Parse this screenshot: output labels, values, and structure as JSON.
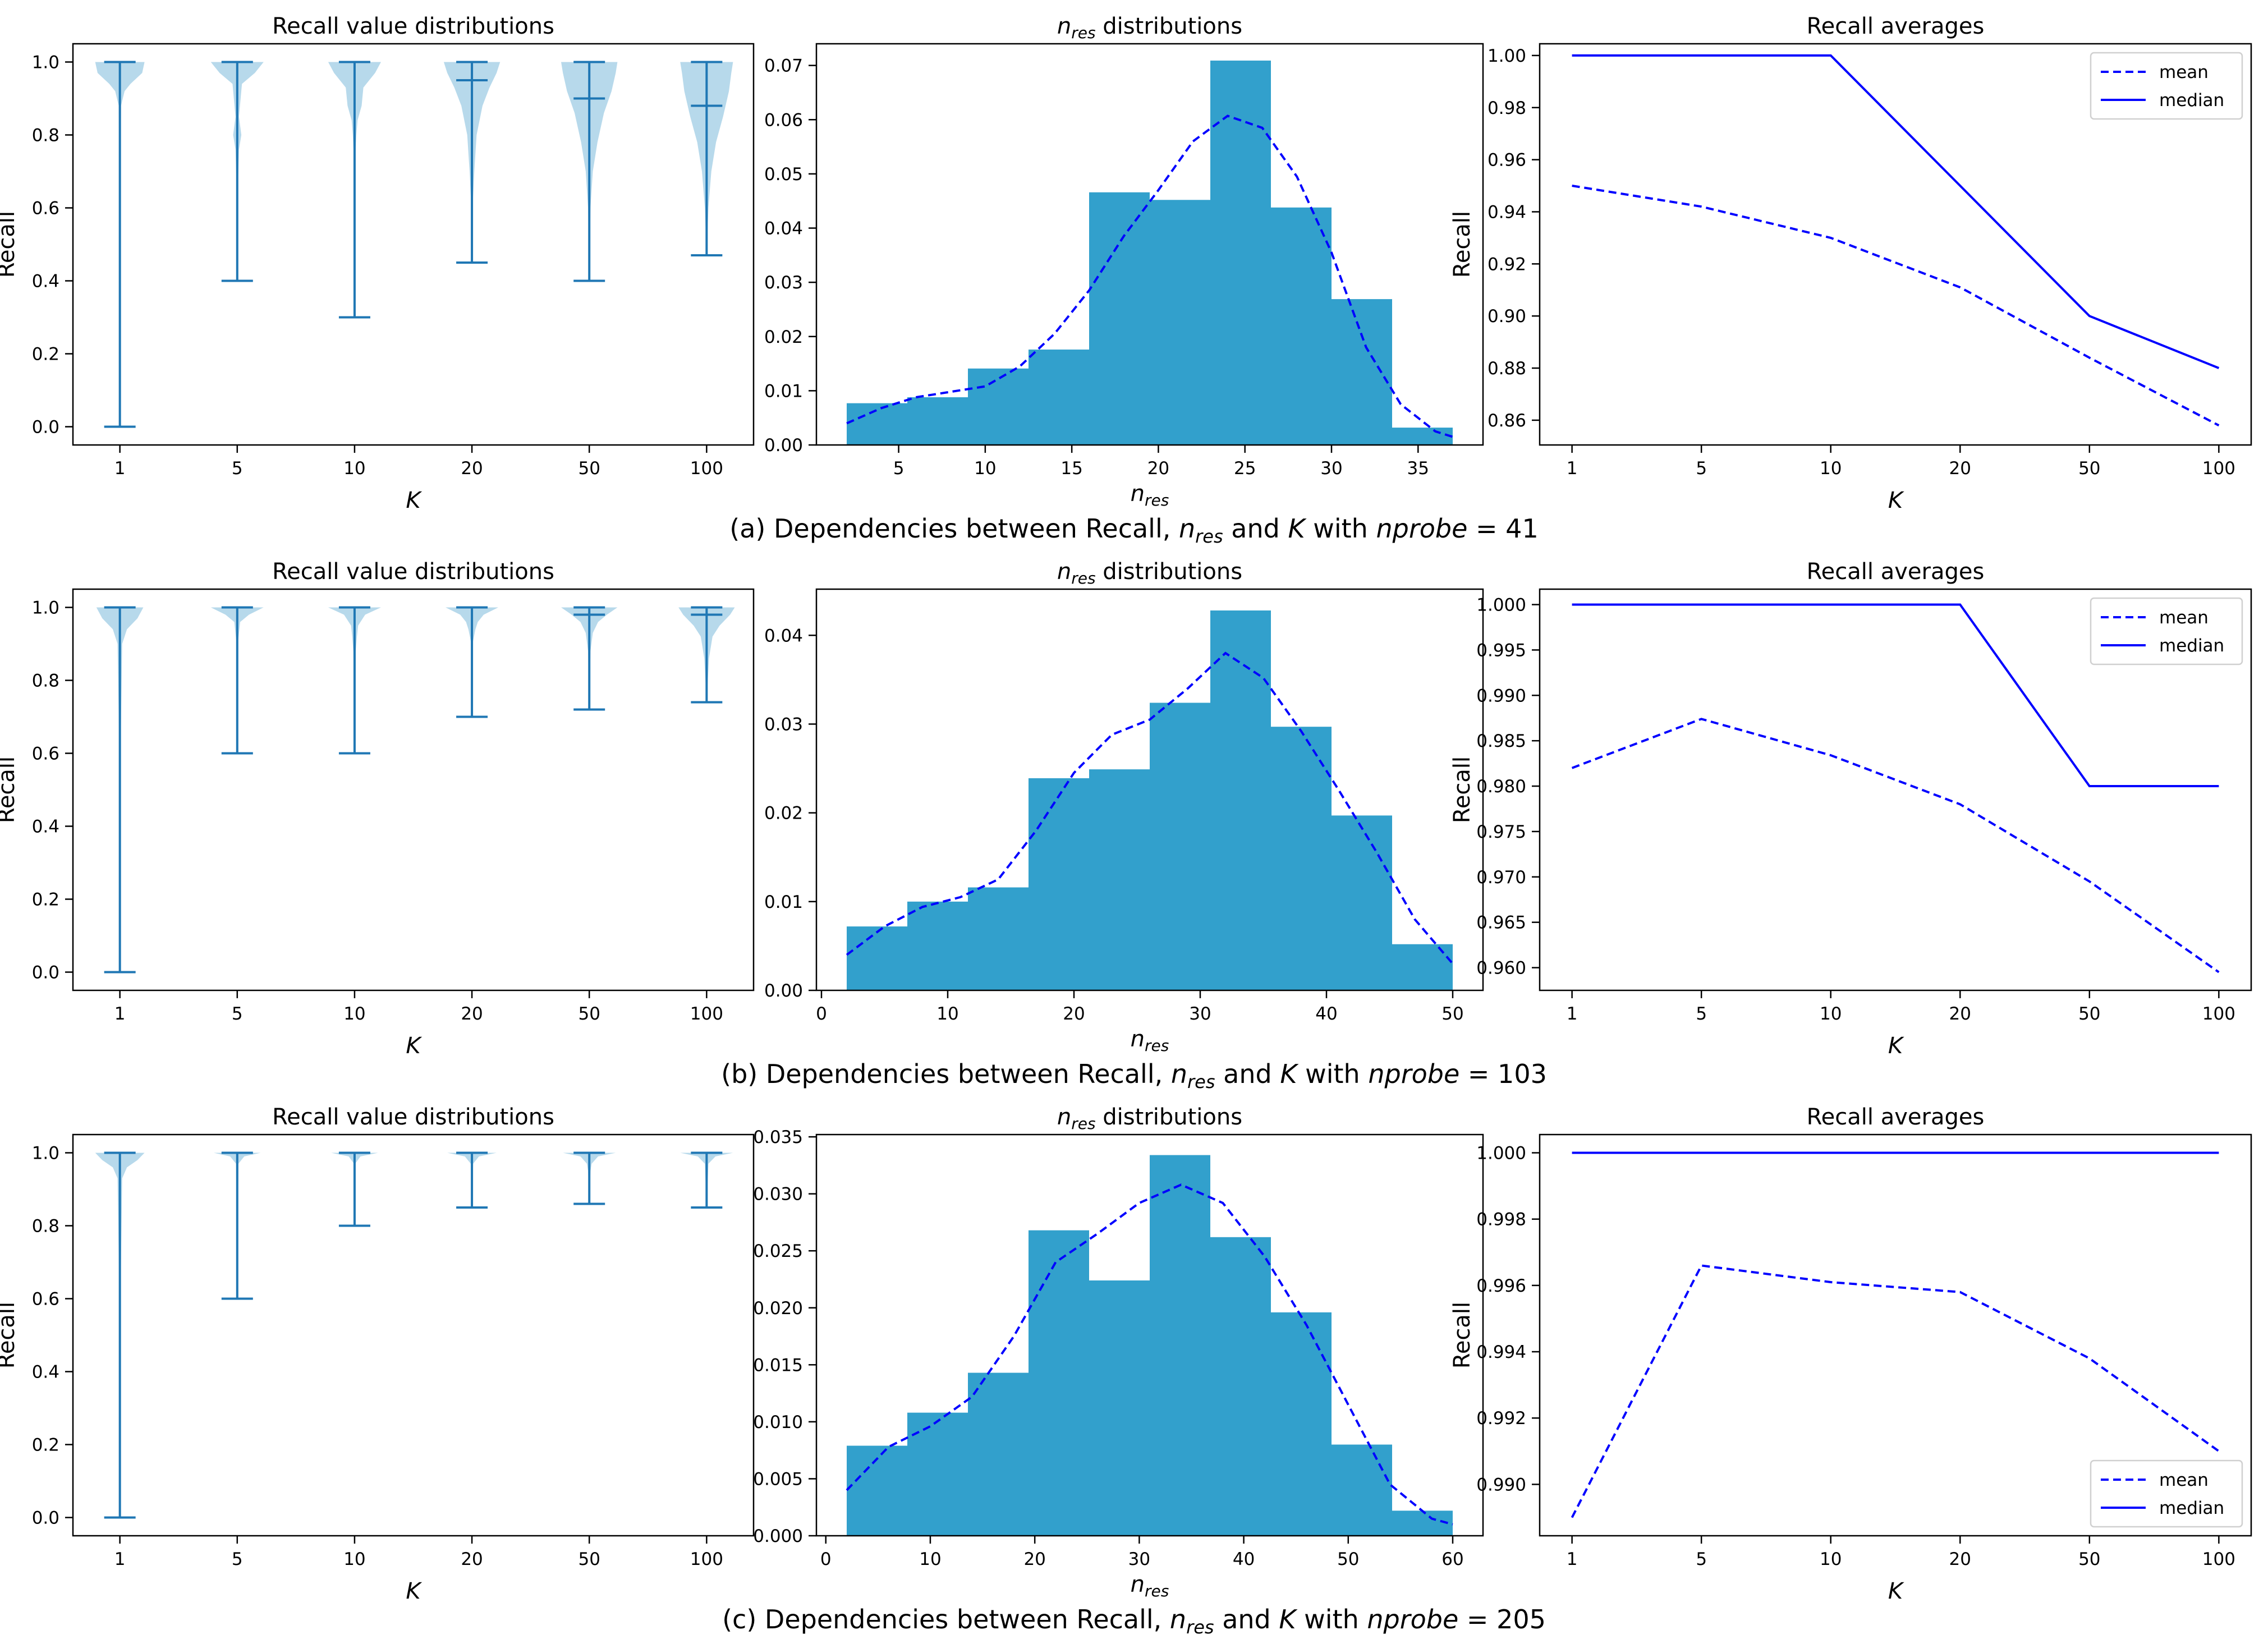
{
  "rows": [
    {
      "caption": {
        "prefix": "(a) Dependencies between Recall, ",
        "n": "n",
        "res": "res",
        "mid": " and ",
        "k": "K",
        "with": " with ",
        "nprobe": "nprobe",
        "value": " = 41"
      },
      "violin": {
        "title": "Recall value distributions",
        "xlabel": "K",
        "ylabel": "Recall",
        "categories": [
          "1",
          "5",
          "10",
          "20",
          "50",
          "100"
        ],
        "yticks": [
          "0.0",
          "0.2",
          "0.4",
          "0.6",
          "0.8",
          "1.0"
        ],
        "min": [
          0.0,
          0.4,
          0.3,
          0.45,
          0.4,
          0.47
        ],
        "max": [
          1.0,
          1.0,
          1.0,
          1.0,
          1.0,
          1.0
        ],
        "median": [
          null,
          null,
          null,
          0.95,
          0.9,
          0.88
        ],
        "shape": [
          [
            [
              1.0,
              0.42
            ],
            [
              0.97,
              0.38
            ],
            [
              0.94,
              0.18
            ],
            [
              0.92,
              0.08
            ],
            [
              0.88,
              0.02
            ],
            [
              0.5,
              0.0
            ],
            [
              0.0,
              0.0
            ]
          ],
          [
            [
              1.0,
              0.45
            ],
            [
              0.97,
              0.3
            ],
            [
              0.94,
              0.08
            ],
            [
              0.85,
              0.03
            ],
            [
              0.8,
              0.07
            ],
            [
              0.76,
              0.03
            ],
            [
              0.6,
              0.0
            ],
            [
              0.4,
              0.0
            ]
          ],
          [
            [
              1.0,
              0.45
            ],
            [
              0.97,
              0.35
            ],
            [
              0.93,
              0.15
            ],
            [
              0.88,
              0.12
            ],
            [
              0.84,
              0.05
            ],
            [
              0.8,
              0.03
            ],
            [
              0.7,
              0.0
            ],
            [
              0.3,
              0.0
            ]
          ],
          [
            [
              1.0,
              0.48
            ],
            [
              0.97,
              0.42
            ],
            [
              0.93,
              0.3
            ],
            [
              0.88,
              0.18
            ],
            [
              0.8,
              0.08
            ],
            [
              0.7,
              0.04
            ],
            [
              0.6,
              0.01
            ],
            [
              0.45,
              0.0
            ]
          ],
          [
            [
              1.0,
              0.48
            ],
            [
              0.97,
              0.45
            ],
            [
              0.92,
              0.38
            ],
            [
              0.86,
              0.25
            ],
            [
              0.78,
              0.14
            ],
            [
              0.7,
              0.06
            ],
            [
              0.6,
              0.02
            ],
            [
              0.4,
              0.0
            ]
          ],
          [
            [
              1.0,
              0.45
            ],
            [
              0.97,
              0.42
            ],
            [
              0.92,
              0.38
            ],
            [
              0.85,
              0.28
            ],
            [
              0.78,
              0.16
            ],
            [
              0.7,
              0.08
            ],
            [
              0.6,
              0.03
            ],
            [
              0.47,
              0.0
            ]
          ]
        ]
      },
      "hist": {
        "title_n": "n",
        "title_res": "res",
        "title_rest": " distributions",
        "xlabel_n": "n",
        "xlabel_res": "res",
        "xlim": [
          0.25,
          38.75
        ],
        "ylim": [
          0,
          0.074
        ],
        "xticks": [
          5,
          10,
          15,
          20,
          25,
          30,
          35
        ],
        "yticks": [
          0.0,
          0.01,
          0.02,
          0.03,
          0.04,
          0.05,
          0.06,
          0.07
        ],
        "ytick_labels": [
          "0.00",
          "0.01",
          "0.02",
          "0.03",
          "0.04",
          "0.05",
          "0.06",
          "0.07"
        ],
        "edges": [
          2,
          5.5,
          9,
          12.5,
          16,
          19.5,
          23,
          26.5,
          30,
          33.5,
          37
        ],
        "heights": [
          0.0077,
          0.0088,
          0.0141,
          0.0176,
          0.0466,
          0.0452,
          0.0709,
          0.0438,
          0.0269,
          0.0032
        ],
        "kde_x": [
          2,
          4,
          6,
          8,
          10,
          12,
          14,
          16,
          18,
          20,
          22,
          24,
          26,
          28,
          30,
          32,
          34,
          36,
          37
        ],
        "kde_y": [
          0.004,
          0.0068,
          0.0088,
          0.0098,
          0.0108,
          0.0145,
          0.0205,
          0.0285,
          0.0385,
          0.047,
          0.056,
          0.0607,
          0.0585,
          0.0495,
          0.0355,
          0.018,
          0.0075,
          0.0025,
          0.0015
        ]
      },
      "avg": {
        "title": "Recall averages",
        "xlabel": "K",
        "ylabel": "Recall",
        "categories": [
          "1",
          "5",
          "10",
          "20",
          "50",
          "100"
        ],
        "ylim": [
          0.8505,
          1.0045
        ],
        "yticks": [
          0.86,
          0.88,
          0.9,
          0.92,
          0.94,
          0.96,
          0.98,
          1.0
        ],
        "ytick_labels": [
          "0.86",
          "0.88",
          "0.90",
          "0.92",
          "0.94",
          "0.96",
          "0.98",
          "1.00"
        ],
        "mean": [
          0.95,
          0.942,
          0.93,
          0.911,
          0.884,
          0.858
        ],
        "median": [
          1.0,
          1.0,
          1.0,
          0.95,
          0.9,
          0.88
        ],
        "legend": [
          "mean",
          "median"
        ],
        "legend_position": "top-right"
      }
    },
    {
      "caption": {
        "prefix": "(b) Dependencies between Recall, ",
        "n": "n",
        "res": "res",
        "mid": " and ",
        "k": "K",
        "with": " with ",
        "nprobe": "nprobe",
        "value": " = 103"
      },
      "violin": {
        "title": "Recall value distributions",
        "xlabel": "K",
        "ylabel": "Recall",
        "categories": [
          "1",
          "5",
          "10",
          "20",
          "50",
          "100"
        ],
        "yticks": [
          "0.0",
          "0.2",
          "0.4",
          "0.6",
          "0.8",
          "1.0"
        ],
        "min": [
          0.0,
          0.6,
          0.6,
          0.7,
          0.72,
          0.74
        ],
        "max": [
          1.0,
          1.0,
          1.0,
          1.0,
          1.0,
          1.0
        ],
        "median": [
          null,
          null,
          null,
          null,
          0.98,
          0.98
        ],
        "shape": [
          [
            [
              1.0,
              0.4
            ],
            [
              0.97,
              0.3
            ],
            [
              0.94,
              0.12
            ],
            [
              0.9,
              0.04
            ],
            [
              0.5,
              0.0
            ],
            [
              0.0,
              0.0
            ]
          ],
          [
            [
              1.0,
              0.45
            ],
            [
              0.98,
              0.2
            ],
            [
              0.96,
              0.05
            ],
            [
              0.9,
              0.01
            ],
            [
              0.6,
              0.0
            ]
          ],
          [
            [
              1.0,
              0.45
            ],
            [
              0.98,
              0.18
            ],
            [
              0.95,
              0.06
            ],
            [
              0.92,
              0.04
            ],
            [
              0.88,
              0.02
            ],
            [
              0.6,
              0.0
            ]
          ],
          [
            [
              1.0,
              0.45
            ],
            [
              0.98,
              0.2
            ],
            [
              0.96,
              0.1
            ],
            [
              0.94,
              0.06
            ],
            [
              0.9,
              0.01
            ],
            [
              0.7,
              0.0
            ]
          ],
          [
            [
              1.0,
              0.48
            ],
            [
              0.98,
              0.3
            ],
            [
              0.96,
              0.15
            ],
            [
              0.93,
              0.06
            ],
            [
              0.88,
              0.02
            ],
            [
              0.72,
              0.0
            ]
          ],
          [
            [
              1.0,
              0.48
            ],
            [
              0.98,
              0.4
            ],
            [
              0.95,
              0.22
            ],
            [
              0.92,
              0.1
            ],
            [
              0.86,
              0.04
            ],
            [
              0.74,
              0.0
            ]
          ]
        ]
      },
      "hist": {
        "title_n": "n",
        "title_res": "res",
        "title_rest": " distributions",
        "xlabel_n": "n",
        "xlabel_res": "res",
        "xlim": [
          -0.4,
          52.4
        ],
        "ylim": [
          0,
          0.0452
        ],
        "xticks": [
          0,
          10,
          20,
          30,
          40,
          50
        ],
        "yticks": [
          0.0,
          0.01,
          0.02,
          0.03,
          0.04
        ],
        "ytick_labels": [
          "0.00",
          "0.01",
          "0.02",
          "0.03",
          "0.04"
        ],
        "edges": [
          2,
          6.8,
          11.6,
          16.4,
          21.2,
          26,
          30.8,
          35.6,
          40.4,
          45.2,
          50
        ],
        "heights": [
          0.0072,
          0.01,
          0.0116,
          0.0239,
          0.0249,
          0.0324,
          0.0428,
          0.0297,
          0.0197,
          0.0052
        ],
        "kde_x": [
          2,
          5,
          8,
          11,
          14,
          17,
          20,
          23,
          26,
          29,
          32,
          35,
          38,
          41,
          44,
          47,
          50
        ],
        "kde_y": [
          0.004,
          0.0072,
          0.0094,
          0.0105,
          0.0125,
          0.018,
          0.0245,
          0.0288,
          0.0305,
          0.034,
          0.038,
          0.0352,
          0.0292,
          0.0225,
          0.0155,
          0.008,
          0.003
        ]
      },
      "avg": {
        "title": "Recall averages",
        "xlabel": "K",
        "ylabel": "Recall",
        "categories": [
          "1",
          "5",
          "10",
          "20",
          "50",
          "100"
        ],
        "ylim": [
          0.9575,
          1.0017
        ],
        "yticks": [
          0.96,
          0.965,
          0.97,
          0.975,
          0.98,
          0.985,
          0.99,
          0.995,
          1.0
        ],
        "ytick_labels": [
          "0.960",
          "0.965",
          "0.970",
          "0.975",
          "0.980",
          "0.985",
          "0.990",
          "0.995",
          "1.000"
        ],
        "mean": [
          0.982,
          0.9874,
          0.9834,
          0.978,
          0.9695,
          0.9595
        ],
        "median": [
          1.0,
          1.0,
          1.0,
          1.0,
          0.98,
          0.98
        ],
        "legend": [
          "mean",
          "median"
        ],
        "legend_position": "top-right"
      }
    },
    {
      "caption": {
        "prefix": "(c) Dependencies between Recall, ",
        "n": "n",
        "res": "res",
        "mid": " and ",
        "k": "K",
        "with": " with ",
        "nprobe": "nprobe",
        "value": " = 205"
      },
      "violin": {
        "title": "Recall value distributions",
        "xlabel": "K",
        "ylabel": "Recall",
        "categories": [
          "1",
          "5",
          "10",
          "20",
          "50",
          "100"
        ],
        "yticks": [
          "0.0",
          "0.2",
          "0.4",
          "0.6",
          "0.8",
          "1.0"
        ],
        "min": [
          0.0,
          0.6,
          0.8,
          0.85,
          0.86,
          0.85
        ],
        "max": [
          1.0,
          1.0,
          1.0,
          1.0,
          1.0,
          1.0
        ],
        "median": [
          null,
          null,
          null,
          null,
          null,
          null
        ],
        "shape": [
          [
            [
              1.0,
              0.42
            ],
            [
              0.98,
              0.3
            ],
            [
              0.96,
              0.12
            ],
            [
              0.93,
              0.04
            ],
            [
              0.5,
              0.0
            ],
            [
              0.0,
              0.0
            ]
          ],
          [
            [
              1.0,
              0.4
            ],
            [
              0.99,
              0.12
            ],
            [
              0.97,
              0.02
            ],
            [
              0.6,
              0.0
            ]
          ],
          [
            [
              1.0,
              0.4
            ],
            [
              0.99,
              0.1
            ],
            [
              0.97,
              0.01
            ],
            [
              0.8,
              0.0
            ]
          ],
          [
            [
              1.0,
              0.42
            ],
            [
              0.99,
              0.12
            ],
            [
              0.97,
              0.02
            ],
            [
              0.85,
              0.0
            ]
          ],
          [
            [
              1.0,
              0.45
            ],
            [
              0.99,
              0.15
            ],
            [
              0.97,
              0.04
            ],
            [
              0.95,
              0.02
            ],
            [
              0.86,
              0.0
            ]
          ],
          [
            [
              1.0,
              0.45
            ],
            [
              0.99,
              0.15
            ],
            [
              0.97,
              0.03
            ],
            [
              0.85,
              0.0
            ]
          ]
        ]
      },
      "hist": {
        "title_n": "n",
        "title_res": "res",
        "title_rest": " distributions",
        "xlabel_n": "n",
        "xlabel_res": "res",
        "xlim": [
          -0.9,
          62.9
        ],
        "ylim": [
          0,
          0.0352
        ],
        "xticks": [
          0,
          10,
          20,
          30,
          40,
          50,
          60
        ],
        "yticks": [
          0.0,
          0.005,
          0.01,
          0.015,
          0.02,
          0.025,
          0.03,
          0.035
        ],
        "ytick_labels": [
          "0.000",
          "0.005",
          "0.010",
          "0.015",
          "0.020",
          "0.025",
          "0.030",
          "0.035"
        ],
        "edges": [
          2,
          7.8,
          13.6,
          19.4,
          25.2,
          31,
          36.8,
          42.6,
          48.4,
          54.2,
          60
        ],
        "heights": [
          0.0079,
          0.0108,
          0.0143,
          0.0268,
          0.0224,
          0.0334,
          0.0262,
          0.0196,
          0.008,
          0.0022
        ],
        "kde_x": [
          2,
          6,
          10,
          14,
          18,
          22,
          26,
          30,
          34,
          38,
          42,
          46,
          50,
          54,
          58,
          60
        ],
        "kde_y": [
          0.004,
          0.0078,
          0.0096,
          0.0122,
          0.0175,
          0.024,
          0.0265,
          0.0292,
          0.0308,
          0.0292,
          0.0245,
          0.0185,
          0.0115,
          0.0045,
          0.0015,
          0.001
        ]
      },
      "avg": {
        "title": "Recall averages",
        "xlabel": "K",
        "ylabel": "Recall",
        "categories": [
          "1",
          "5",
          "10",
          "20",
          "50",
          "100"
        ],
        "ylim": [
          0.98845,
          1.00055
        ],
        "yticks": [
          0.99,
          0.992,
          0.994,
          0.996,
          0.998,
          1.0
        ],
        "ytick_labels": [
          "0.990",
          "0.992",
          "0.994",
          "0.996",
          "0.998",
          "1.000"
        ],
        "mean": [
          0.989,
          0.9966,
          0.9961,
          0.9958,
          0.9938,
          0.991
        ],
        "median": [
          1.0,
          1.0,
          1.0,
          1.0,
          1.0,
          1.0
        ],
        "legend": [
          "mean",
          "median"
        ],
        "legend_position": "bottom-right"
      }
    }
  ],
  "colors": {
    "violin_fill": "#b3d7ea",
    "violin_line": "#1f77b4",
    "hist_fill": "#32a0cc",
    "kde": "#0000ff",
    "mean": "#0000ff",
    "median": "#0000ff"
  }
}
